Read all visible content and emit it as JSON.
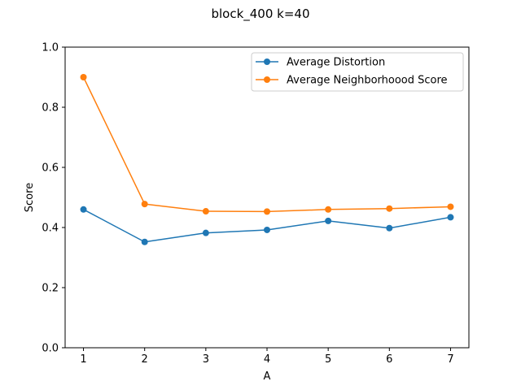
{
  "chart_data": {
    "type": "line",
    "title": "block_400 k=40",
    "xlabel": "A",
    "ylabel": "Score",
    "x": [
      1,
      2,
      3,
      4,
      5,
      6,
      7
    ],
    "xticks": [
      "1",
      "2",
      "3",
      "4",
      "5",
      "6",
      "7"
    ],
    "yticks": [
      "0.0",
      "0.2",
      "0.4",
      "0.6",
      "0.8",
      "1.0"
    ],
    "xlim": [
      0.7,
      7.3
    ],
    "ylim": [
      0,
      1
    ],
    "grid": false,
    "legend_position": "upper-right",
    "series": [
      {
        "name": "Average Distortion",
        "color": "#1f77b4",
        "marker": "circle",
        "values": [
          0.46,
          0.352,
          0.382,
          0.392,
          0.422,
          0.398,
          0.434
        ]
      },
      {
        "name": "Average Neighborhoood Score",
        "color": "#ff7f0e",
        "marker": "circle",
        "values": [
          0.9,
          0.478,
          0.454,
          0.453,
          0.46,
          0.463,
          0.469
        ]
      }
    ]
  }
}
